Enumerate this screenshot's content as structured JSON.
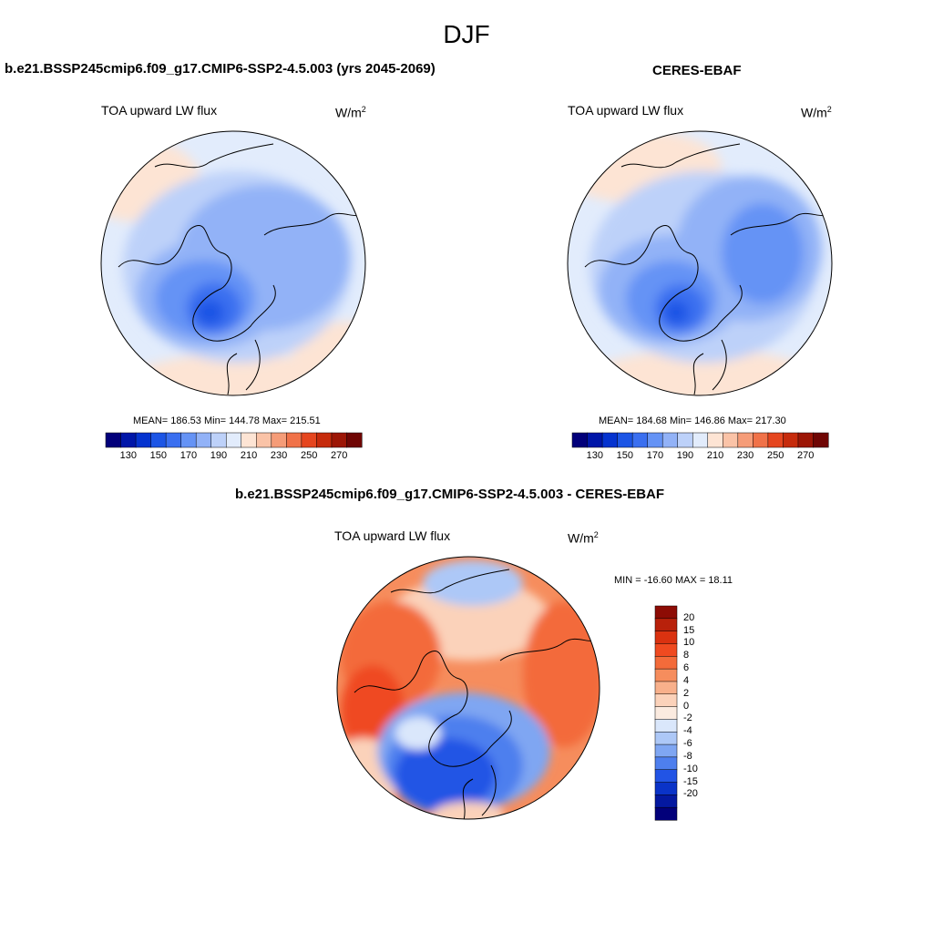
{
  "figure": {
    "title": "DJF"
  },
  "panels": {
    "model": {
      "title": "b.e21.BSSP245cmip6.f09_g17.CMIP6-SSP2-4.5.003 (yrs 2045-2069)",
      "variable": "TOA upward LW flux",
      "units_base": "W/m",
      "units_exp": "2",
      "stats": "MEAN= 186.53  Min= 144.78  Max= 215.51"
    },
    "obs": {
      "title": "CERES-EBAF",
      "variable": "TOA upward LW flux",
      "units_base": "W/m",
      "units_exp": "2",
      "stats": "MEAN= 184.68  Min= 146.86  Max= 217.30"
    },
    "diff": {
      "title": "b.e21.BSSP245cmip6.f09_g17.CMIP6-SSP2-4.5.003 - CERES-EBAF",
      "variable": "TOA upward LW flux",
      "units_base": "W/m",
      "units_exp": "2",
      "stats": "MIN = -16.60 MAX =  18.11"
    }
  },
  "colorbars": {
    "absolute": {
      "labels": [
        "130",
        "150",
        "170",
        "190",
        "210",
        "230",
        "250",
        "270"
      ],
      "colors": [
        "#02007a",
        "#0016a8",
        "#0533cf",
        "#1c55e5",
        "#3a6ff0",
        "#6593f5",
        "#92b2f7",
        "#bdd1f9",
        "#e2ecfc",
        "#fde4d4",
        "#fac3a7",
        "#f59c78",
        "#f07249",
        "#e5461f",
        "#c62b0c",
        "#9c1606",
        "#6f0604"
      ]
    },
    "difference": {
      "labels": [
        "20",
        "15",
        "10",
        "8",
        "6",
        "4",
        "2",
        "0",
        "-2",
        "-4",
        "-6",
        "-8",
        "-10",
        "-15",
        "-20"
      ],
      "colors": [
        "#8d0c05",
        "#b8210b",
        "#da3210",
        "#ef4a20",
        "#f36b3a",
        "#f68d5d",
        "#f8b08b",
        "#fbd2ba",
        "#fbebe0",
        "#dae7fb",
        "#adc8f7",
        "#7fa6f2",
        "#4e7fee",
        "#2254e5",
        "#0a33c8",
        "#0418a0",
        "#02007a"
      ]
    }
  }
}
